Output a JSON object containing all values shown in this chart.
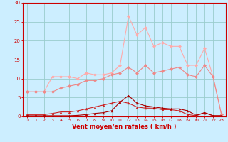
{
  "x": [
    0,
    1,
    2,
    3,
    4,
    5,
    6,
    7,
    8,
    9,
    10,
    11,
    12,
    13,
    14,
    15,
    16,
    17,
    18,
    19,
    20,
    21,
    22,
    23
  ],
  "line_darkred1": [
    0.2,
    0.2,
    0.2,
    0.2,
    0.2,
    0.2,
    0.3,
    0.5,
    0.8,
    1.0,
    1.5,
    3.8,
    5.5,
    3.5,
    2.8,
    2.5,
    2.2,
    2.0,
    2.0,
    1.5,
    0.3,
    1.0,
    0.2,
    0.2
  ],
  "line_darkred2": [
    0.5,
    0.5,
    0.5,
    0.8,
    1.2,
    1.2,
    1.5,
    2.0,
    2.5,
    3.0,
    3.5,
    4.0,
    3.5,
    2.5,
    2.2,
    2.2,
    1.8,
    1.8,
    1.5,
    0.5,
    0.2,
    1.0,
    0.2,
    0.2
  ],
  "line_pink_lo": [
    6.5,
    6.5,
    6.5,
    6.5,
    7.5,
    8.0,
    8.5,
    9.5,
    9.5,
    10.0,
    11.0,
    11.5,
    13.0,
    11.5,
    13.5,
    11.5,
    12.0,
    12.5,
    13.0,
    11.0,
    10.5,
    13.5,
    10.5,
    0.5
  ],
  "line_pink_hi": [
    6.5,
    6.5,
    6.5,
    10.5,
    10.5,
    10.5,
    10.0,
    11.5,
    11.0,
    11.0,
    11.5,
    13.5,
    26.5,
    21.5,
    23.5,
    18.5,
    19.5,
    18.5,
    18.5,
    13.5,
    13.5,
    18.0,
    10.5,
    0.5
  ],
  "color_darkred1": "#aa0000",
  "color_darkred2": "#cc2222",
  "color_pink_lo": "#ee8888",
  "color_pink_hi": "#ffaaaa",
  "bg_color": "#cceeff",
  "grid_color": "#99cccc",
  "axis_label_color": "#cc0000",
  "tick_color": "#cc0000",
  "xlabel": "Vent moyen/en rafales ( km/h )",
  "ylim": [
    0,
    30
  ],
  "xlim": [
    -0.5,
    23.5
  ],
  "yticks": [
    0,
    5,
    10,
    15,
    20,
    25,
    30
  ],
  "xticks": [
    0,
    1,
    2,
    3,
    4,
    5,
    6,
    7,
    8,
    9,
    10,
    11,
    12,
    13,
    14,
    15,
    16,
    17,
    18,
    19,
    20,
    21,
    22,
    23
  ]
}
